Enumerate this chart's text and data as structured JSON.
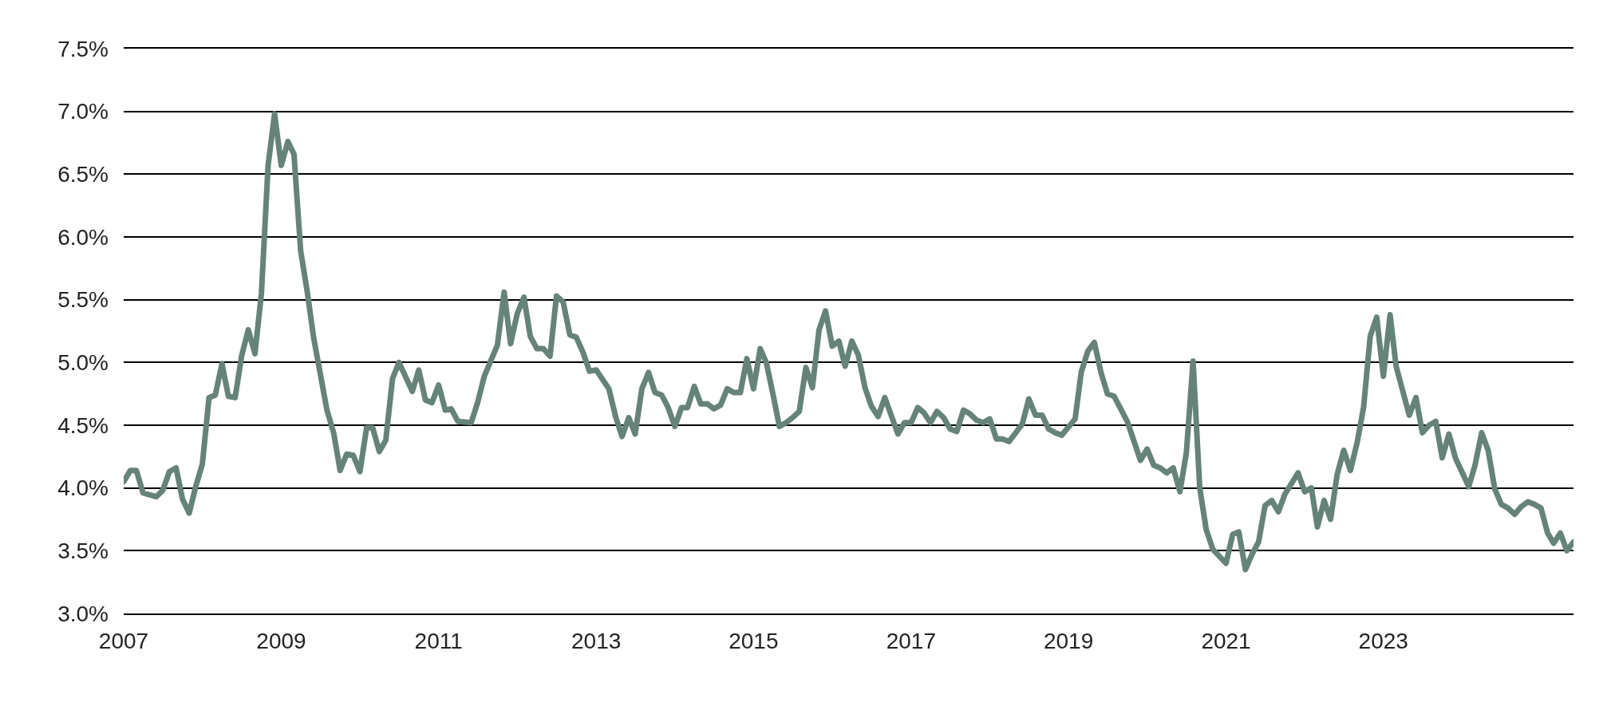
{
  "chart_data": {
    "type": "line",
    "x": [
      "2007-01",
      "2007-02",
      "2007-03",
      "2007-04",
      "2007-06",
      "2007-07",
      "2007-08",
      "2007-09",
      "2007-10",
      "2007-11",
      "2007-12",
      "2008-01",
      "2008-02",
      "2008-03",
      "2008-04",
      "2008-05",
      "2008-06",
      "2008-07",
      "2008-08",
      "2008-09",
      "2008-10",
      "2008-11",
      "2008-12",
      "2009-01",
      "2009-02",
      "2009-03",
      "2009-04",
      "2009-05",
      "2009-06",
      "2009-07",
      "2009-08",
      "2009-09",
      "2009-10",
      "2009-11",
      "2009-12",
      "2010-01",
      "2010-02",
      "2010-03",
      "2010-04",
      "2010-05",
      "2010-06",
      "2010-07",
      "2010-09",
      "2010-10",
      "2010-11",
      "2010-12",
      "2011-01",
      "2011-02",
      "2011-03",
      "2011-04",
      "2011-06",
      "2011-07",
      "2011-08",
      "2011-10",
      "2011-11",
      "2011-12",
      "2012-01",
      "2012-02",
      "2012-03",
      "2012-04",
      "2012-05",
      "2012-06",
      "2012-07",
      "2012-08",
      "2012-09",
      "2012-10",
      "2012-11",
      "2012-12",
      "2013-01",
      "2013-03",
      "2013-04",
      "2013-05",
      "2013-06",
      "2013-07",
      "2013-08",
      "2013-09",
      "2013-10",
      "2013-11",
      "2013-12",
      "2014-01",
      "2014-02",
      "2014-03",
      "2014-04",
      "2014-05",
      "2014-06",
      "2014-07",
      "2014-08",
      "2014-09",
      "2014-10",
      "2014-11",
      "2014-12",
      "2015-01",
      "2015-02",
      "2015-03",
      "2015-04",
      "2015-05",
      "2015-06",
      "2015-07",
      "2015-08",
      "2015-09",
      "2015-10",
      "2015-11",
      "2015-12",
      "2016-01",
      "2016-02",
      "2016-03",
      "2016-04",
      "2016-05",
      "2016-06",
      "2016-07",
      "2016-08",
      "2016-09",
      "2016-11",
      "2016-12",
      "2017-01",
      "2017-02",
      "2017-03",
      "2017-04",
      "2017-05",
      "2017-06",
      "2017-07",
      "2017-08",
      "2017-09",
      "2017-10",
      "2017-11",
      "2017-12",
      "2018-01",
      "2018-02",
      "2018-03",
      "2018-04",
      "2018-06",
      "2018-07",
      "2018-08",
      "2018-09",
      "2018-10",
      "2018-11",
      "2018-12",
      "2019-02",
      "2019-03",
      "2019-04",
      "2019-05",
      "2019-06",
      "2019-07",
      "2019-08",
      "2019-10",
      "2019-12",
      "2020-01",
      "2020-02",
      "2020-03",
      "2020-04",
      "2020-05",
      "2020-06",
      "2020-07",
      "2020-08",
      "2020-09",
      "2020-10",
      "2020-11",
      "2021-01",
      "2021-02",
      "2021-03",
      "2021-04",
      "2021-05",
      "2021-06",
      "2021-07",
      "2021-08",
      "2021-09",
      "2021-10",
      "2021-12",
      "2022-01",
      "2022-02",
      "2022-03",
      "2022-04",
      "2022-05",
      "2022-06",
      "2022-07",
      "2022-08",
      "2022-09",
      "2022-10",
      "2022-11",
      "2022-12",
      "2023-01",
      "2023-02",
      "2023-03",
      "2023-05",
      "2023-06",
      "2023-07",
      "2023-08",
      "2023-09",
      "2023-10",
      "2023-11",
      "2023-12",
      "2024-02",
      "2024-03",
      "2024-04",
      "2024-05",
      "2024-06",
      "2024-07",
      "2024-08",
      "2024-09",
      "2024-10",
      "2024-11",
      "2024-12",
      "2025-01",
      "2025-02",
      "2025-03",
      "2025-04",
      "2025-05",
      "2025-06"
    ],
    "series": [
      {
        "color": "#66837a",
        "values": [
          4.05,
          4.14,
          4.14,
          3.96,
          3.93,
          3.98,
          4.13,
          4.16,
          3.91,
          3.8,
          4.01,
          4.19,
          4.72,
          4.74,
          4.99,
          4.73,
          4.72,
          5.05,
          5.26,
          5.07,
          5.55,
          6.57,
          6.98,
          6.57,
          6.76,
          6.66,
          5.89,
          5.57,
          5.19,
          4.91,
          4.62,
          4.44,
          4.14,
          4.27,
          4.26,
          4.13,
          4.48,
          4.48,
          4.29,
          4.38,
          4.87,
          5.0,
          4.77,
          4.94,
          4.7,
          4.68,
          4.82,
          4.62,
          4.63,
          4.53,
          4.52,
          4.68,
          4.89,
          5.14,
          5.56,
          5.15,
          5.39,
          5.52,
          5.21,
          5.11,
          5.11,
          5.05,
          5.53,
          5.48,
          5.22,
          5.2,
          5.08,
          4.93,
          4.94,
          4.79,
          4.57,
          4.41,
          4.56,
          4.43,
          4.79,
          4.92,
          4.76,
          4.74,
          4.64,
          4.49,
          4.64,
          4.64,
          4.81,
          4.67,
          4.67,
          4.63,
          4.66,
          4.79,
          4.76,
          4.76,
          5.03,
          4.79,
          5.11,
          5.0,
          4.75,
          4.49,
          4.52,
          4.56,
          4.61,
          4.96,
          4.8,
          5.26,
          5.41,
          5.13,
          5.17,
          4.97,
          5.17,
          5.06,
          4.8,
          4.65,
          4.57,
          4.72,
          4.43,
          4.52,
          4.52,
          4.64,
          4.6,
          4.52,
          4.61,
          4.56,
          4.47,
          4.45,
          4.62,
          4.59,
          4.54,
          4.52,
          4.55,
          4.39,
          4.39,
          4.37,
          4.51,
          4.71,
          4.58,
          4.58,
          4.47,
          4.44,
          4.42,
          4.55,
          4.92,
          5.09,
          5.16,
          4.92,
          4.75,
          4.73,
          4.53,
          4.22,
          4.31,
          4.18,
          4.16,
          4.12,
          4.16,
          3.97,
          4.28,
          5.01,
          4.0,
          3.67,
          3.51,
          3.4,
          3.63,
          3.65,
          3.35,
          3.47,
          3.57,
          3.86,
          3.9,
          3.81,
          3.95,
          4.12,
          3.97,
          4.0,
          3.69,
          3.9,
          3.75,
          4.11,
          4.3,
          4.14,
          4.36,
          4.64,
          5.21,
          5.36,
          4.89,
          5.38,
          4.97,
          4.58,
          4.72,
          4.44,
          4.5,
          4.53,
          4.24,
          4.43,
          4.24,
          4.01,
          4.18,
          4.44,
          4.3,
          3.99,
          3.87,
          3.84,
          3.79,
          3.85,
          3.89,
          3.87,
          3.84,
          3.64,
          3.56,
          3.64,
          3.5,
          3.57
        ]
      }
    ],
    "xlim": [
      "2007-01",
      "2025-06"
    ],
    "xticks": [
      "2007",
      "2009",
      "2011",
      "2013",
      "2015",
      "2017",
      "2019",
      "2021",
      "2023"
    ],
    "ylim": [
      3.0,
      7.5
    ],
    "yticks": [
      {
        "value": 3.0,
        "label": "3.0%"
      },
      {
        "value": 3.5,
        "label": "3.5%"
      },
      {
        "value": 4.0,
        "label": "4.0%"
      },
      {
        "value": 4.5,
        "label": "4.5%"
      },
      {
        "value": 5.0,
        "label": "5.0%"
      },
      {
        "value": 5.5,
        "label": "5.5%"
      },
      {
        "value": 6.0,
        "label": "6.0%"
      },
      {
        "value": 6.5,
        "label": "6.5%"
      },
      {
        "value": 7.0,
        "label": "7.0%"
      },
      {
        "value": 7.5,
        "label": "7.5%"
      }
    ],
    "grid": "y",
    "marker": "none",
    "line_style": "solid"
  }
}
